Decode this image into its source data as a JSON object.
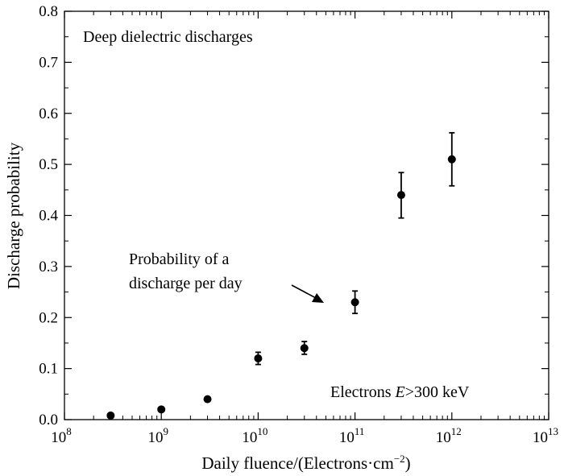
{
  "chart_data": {
    "type": "scatter",
    "title": "",
    "xlabel_main": "Daily fluence/(Electrons·cm",
    "xlabel_sup": "−2",
    "xlabel_close": ")",
    "ylabel": "Discharge probability",
    "xscale": "log",
    "xlim_exp": [
      8,
      13
    ],
    "ylim": [
      0,
      0.8
    ],
    "x_tick_base": "10",
    "x_tick_exponents": [
      "8",
      "9",
      "10",
      "11",
      "12",
      "13"
    ],
    "y_ticks": [
      "0.0",
      "0.1",
      "0.2",
      "0.3",
      "0.4",
      "0.5",
      "0.6",
      "0.7",
      "0.8"
    ],
    "y_tick_values": [
      0.0,
      0.1,
      0.2,
      0.3,
      0.4,
      0.5,
      0.6,
      0.7,
      0.8
    ],
    "series": [
      {
        "name": "Probability of a discharge per day",
        "x": [
          300000000.0,
          1000000000.0,
          3000000000.0,
          10000000000.0,
          30000000000.0,
          100000000000.0,
          300000000000.0,
          1000000000000.0
        ],
        "y": [
          0.008,
          0.02,
          0.04,
          0.12,
          0.14,
          0.23,
          0.44,
          0.51
        ],
        "err_low": [
          0.002,
          0.004,
          0.003,
          0.012,
          0.012,
          0.022,
          0.045,
          0.052
        ],
        "err_high": [
          0.002,
          0.004,
          0.003,
          0.012,
          0.013,
          0.022,
          0.044,
          0.052
        ]
      }
    ],
    "annotations": {
      "panel_label": "Deep dielectric discharges",
      "callout_line1": "Probability of a",
      "callout_line2": "discharge per day",
      "energy_prefix": "Electrons ",
      "energy_symbol": "E",
      "energy_suffix": ">300 keV"
    }
  }
}
